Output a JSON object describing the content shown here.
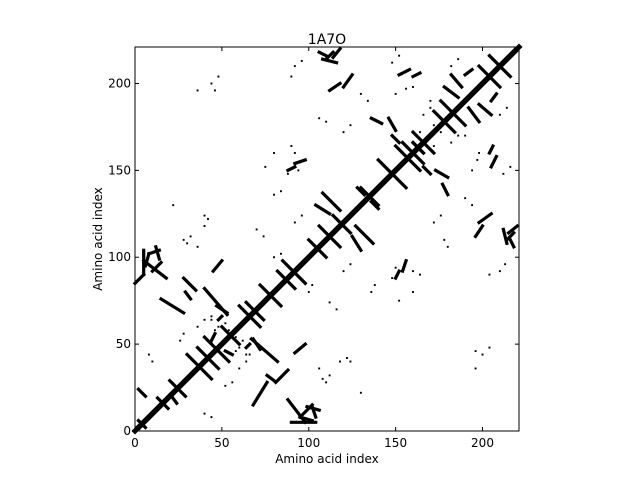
{
  "chart_data": {
    "type": "heatmap",
    "title": "1A7O",
    "xlabel": "Amino acid index",
    "ylabel": "Amino acid index",
    "xlim": [
      0,
      221
    ],
    "ylim": [
      0,
      221
    ],
    "x_ticks": [
      0,
      50,
      100,
      150,
      200
    ],
    "y_ticks": [
      0,
      50,
      100,
      150,
      200
    ],
    "grid": false,
    "legend": "none",
    "colors": {
      "contact": "#000000",
      "background": "#ffffff",
      "frame": "#000000"
    },
    "diagonal": {
      "from": 0,
      "to": 221,
      "band_half_width": 2.2
    },
    "segments": [
      [
        0,
        0,
        221,
        221
      ],
      [
        2,
        6,
        6,
        2
      ],
      [
        13,
        19,
        19,
        13
      ],
      [
        20,
        29,
        29,
        20
      ],
      [
        30,
        44,
        44,
        30
      ],
      [
        36,
        48,
        48,
        36
      ],
      [
        40,
        54,
        54,
        40
      ],
      [
        50,
        60,
        60,
        50
      ],
      [
        60,
        72,
        72,
        60
      ],
      [
        64,
        74,
        74,
        64
      ],
      [
        72,
        84,
        84,
        72
      ],
      [
        82,
        92,
        92,
        82
      ],
      [
        85,
        98,
        98,
        85
      ],
      [
        100,
        110,
        110,
        100
      ],
      [
        106,
        118,
        118,
        106
      ],
      [
        114,
        124,
        124,
        114
      ],
      [
        130,
        140,
        140,
        130
      ],
      [
        140,
        156,
        156,
        140
      ],
      [
        150,
        164,
        164,
        150
      ],
      [
        154,
        166,
        166,
        154
      ],
      [
        160,
        172,
        172,
        160
      ],
      [
        172,
        184,
        184,
        172
      ],
      [
        176,
        190,
        190,
        176
      ],
      [
        198,
        210,
        210,
        198
      ],
      [
        204,
        216,
        216,
        204
      ],
      [
        0,
        85,
        5,
        90
      ],
      [
        10,
        92,
        15,
        97
      ],
      [
        2,
        24,
        6,
        20
      ],
      [
        21,
        20,
        24,
        16
      ],
      [
        5,
        90,
        5,
        104
      ],
      [
        6,
        95,
        8,
        102
      ],
      [
        8,
        102,
        14,
        104
      ],
      [
        15,
        76,
        28,
        68
      ],
      [
        28,
        88,
        35,
        81
      ],
      [
        95,
        8,
        102,
        15
      ],
      [
        104,
        5,
        90,
        5
      ],
      [
        102,
        6,
        95,
        8
      ],
      [
        104,
        8,
        102,
        14
      ],
      [
        68,
        15,
        76,
        28
      ],
      [
        81,
        28,
        88,
        35
      ],
      [
        67,
        53,
        82,
        40
      ],
      [
        76,
        32,
        80,
        29
      ],
      [
        88,
        18,
        98,
        5
      ],
      [
        99,
        14,
        106,
        12
      ],
      [
        45,
        92,
        50,
        98
      ],
      [
        47,
        72,
        53,
        68
      ],
      [
        48,
        64,
        50,
        66
      ],
      [
        53,
        67,
        40,
        82
      ],
      [
        32,
        76,
        29,
        80
      ],
      [
        18,
        88,
        5,
        98
      ],
      [
        14,
        99,
        12,
        106
      ],
      [
        92,
        45,
        98,
        50
      ],
      [
        72,
        47,
        68,
        53
      ],
      [
        64,
        48,
        66,
        50
      ],
      [
        108,
        137,
        118,
        127
      ],
      [
        128,
        140,
        132,
        136
      ],
      [
        104,
        130,
        112,
        125
      ],
      [
        137,
        108,
        127,
        118
      ],
      [
        140,
        128,
        136,
        132
      ],
      [
        130,
        104,
        125,
        112
      ],
      [
        148,
        170,
        152,
        166
      ],
      [
        160,
        166,
        166,
        160
      ],
      [
        170,
        148,
        166,
        152
      ],
      [
        166,
        160,
        160,
        166
      ],
      [
        178,
        198,
        186,
        192
      ],
      [
        182,
        205,
        188,
        198
      ],
      [
        198,
        178,
        192,
        186
      ],
      [
        205,
        182,
        198,
        188
      ],
      [
        112,
        196,
        118,
        200
      ],
      [
        108,
        214,
        116,
        212
      ],
      [
        106,
        218,
        110,
        216
      ],
      [
        196,
        112,
        200,
        118
      ],
      [
        214,
        108,
        212,
        116
      ],
      [
        218,
        106,
        216,
        110
      ],
      [
        136,
        180,
        142,
        177
      ],
      [
        146,
        180,
        150,
        173
      ],
      [
        180,
        136,
        177,
        142
      ],
      [
        180,
        146,
        173,
        150
      ],
      [
        215,
        114,
        220,
        118
      ],
      [
        198,
        120,
        205,
        125
      ],
      [
        114,
        215,
        118,
        220
      ],
      [
        120,
        198,
        125,
        205
      ],
      [
        214,
        110,
        218,
        114
      ],
      [
        110,
        214,
        114,
        218
      ],
      [
        152,
        205,
        158,
        208
      ],
      [
        160,
        204,
        164,
        206
      ],
      [
        205,
        152,
        208,
        158
      ],
      [
        204,
        160,
        206,
        164
      ],
      [
        88,
        150,
        92,
        152
      ],
      [
        92,
        154,
        98,
        156
      ],
      [
        150,
        88,
        152,
        92
      ],
      [
        154,
        92,
        156,
        98
      ],
      [
        44,
        52,
        46,
        56
      ],
      [
        56,
        44,
        52,
        46
      ],
      [
        190,
        205,
        194,
        208
      ],
      [
        205,
        190,
        208,
        194
      ]
    ],
    "points": [
      [
        60,
        36
      ],
      [
        52,
        62
      ],
      [
        58,
        54
      ],
      [
        64,
        40
      ],
      [
        66,
        44
      ],
      [
        46,
        58
      ],
      [
        48,
        60
      ],
      [
        44,
        64
      ],
      [
        36,
        60
      ],
      [
        62,
        52
      ],
      [
        54,
        58
      ],
      [
        40,
        64
      ],
      [
        44,
        66
      ],
      [
        58,
        46
      ],
      [
        60,
        48
      ],
      [
        64,
        44
      ],
      [
        90,
        164
      ],
      [
        92,
        160
      ],
      [
        94,
        150
      ],
      [
        88,
        148
      ],
      [
        164,
        90
      ],
      [
        160,
        92
      ],
      [
        150,
        94
      ],
      [
        148,
        88
      ],
      [
        150,
        194
      ],
      [
        156,
        197
      ],
      [
        160,
        198
      ],
      [
        166,
        182
      ],
      [
        170,
        190
      ],
      [
        172,
        176
      ],
      [
        164,
        172
      ],
      [
        194,
        150
      ],
      [
        197,
        156
      ],
      [
        198,
        160
      ],
      [
        182,
        166
      ],
      [
        190,
        170
      ],
      [
        176,
        172
      ],
      [
        172,
        164
      ],
      [
        30,
        108
      ],
      [
        36,
        106
      ],
      [
        40,
        124
      ],
      [
        22,
        130
      ],
      [
        108,
        30
      ],
      [
        106,
        36
      ],
      [
        124,
        40
      ],
      [
        130,
        22
      ],
      [
        90,
        204
      ],
      [
        92,
        210
      ],
      [
        96,
        213
      ],
      [
        204,
        90
      ],
      [
        210,
        92
      ],
      [
        213,
        96
      ],
      [
        106,
        180
      ],
      [
        110,
        178
      ],
      [
        180,
        106
      ],
      [
        178,
        110
      ],
      [
        196,
        46
      ],
      [
        200,
        44
      ],
      [
        204,
        48
      ],
      [
        196,
        36
      ],
      [
        46,
        196
      ],
      [
        44,
        200
      ],
      [
        48,
        204
      ],
      [
        36,
        196
      ],
      [
        152,
        75
      ],
      [
        160,
        80
      ],
      [
        75,
        152
      ],
      [
        80,
        160
      ],
      [
        120,
        172
      ],
      [
        124,
        176
      ],
      [
        172,
        120
      ],
      [
        176,
        124
      ],
      [
        100,
        80
      ],
      [
        102,
        84
      ],
      [
        80,
        100
      ],
      [
        84,
        102
      ],
      [
        118,
        40
      ],
      [
        122,
        42
      ],
      [
        40,
        118
      ],
      [
        42,
        122
      ],
      [
        136,
        80
      ],
      [
        138,
        84
      ],
      [
        80,
        136
      ],
      [
        84,
        138
      ],
      [
        212,
        148
      ],
      [
        216,
        152
      ],
      [
        148,
        212
      ],
      [
        152,
        216
      ],
      [
        182,
        210
      ],
      [
        186,
        214
      ],
      [
        210,
        182
      ],
      [
        214,
        186
      ],
      [
        10,
        40
      ],
      [
        8,
        44
      ],
      [
        40,
        10
      ],
      [
        44,
        8
      ],
      [
        26,
        52
      ],
      [
        28,
        56
      ],
      [
        52,
        26
      ],
      [
        56,
        28
      ],
      [
        176,
        176
      ],
      [
        186,
        170
      ],
      [
        170,
        186
      ],
      [
        70,
        116
      ],
      [
        74,
        112
      ],
      [
        116,
        70
      ],
      [
        112,
        74
      ],
      [
        120,
        92
      ],
      [
        124,
        96
      ],
      [
        92,
        120
      ],
      [
        96,
        124
      ],
      [
        190,
        134
      ],
      [
        194,
        130
      ],
      [
        134,
        190
      ],
      [
        130,
        194
      ],
      [
        28,
        110
      ],
      [
        32,
        112
      ],
      [
        110,
        28
      ],
      [
        112,
        32
      ]
    ]
  }
}
